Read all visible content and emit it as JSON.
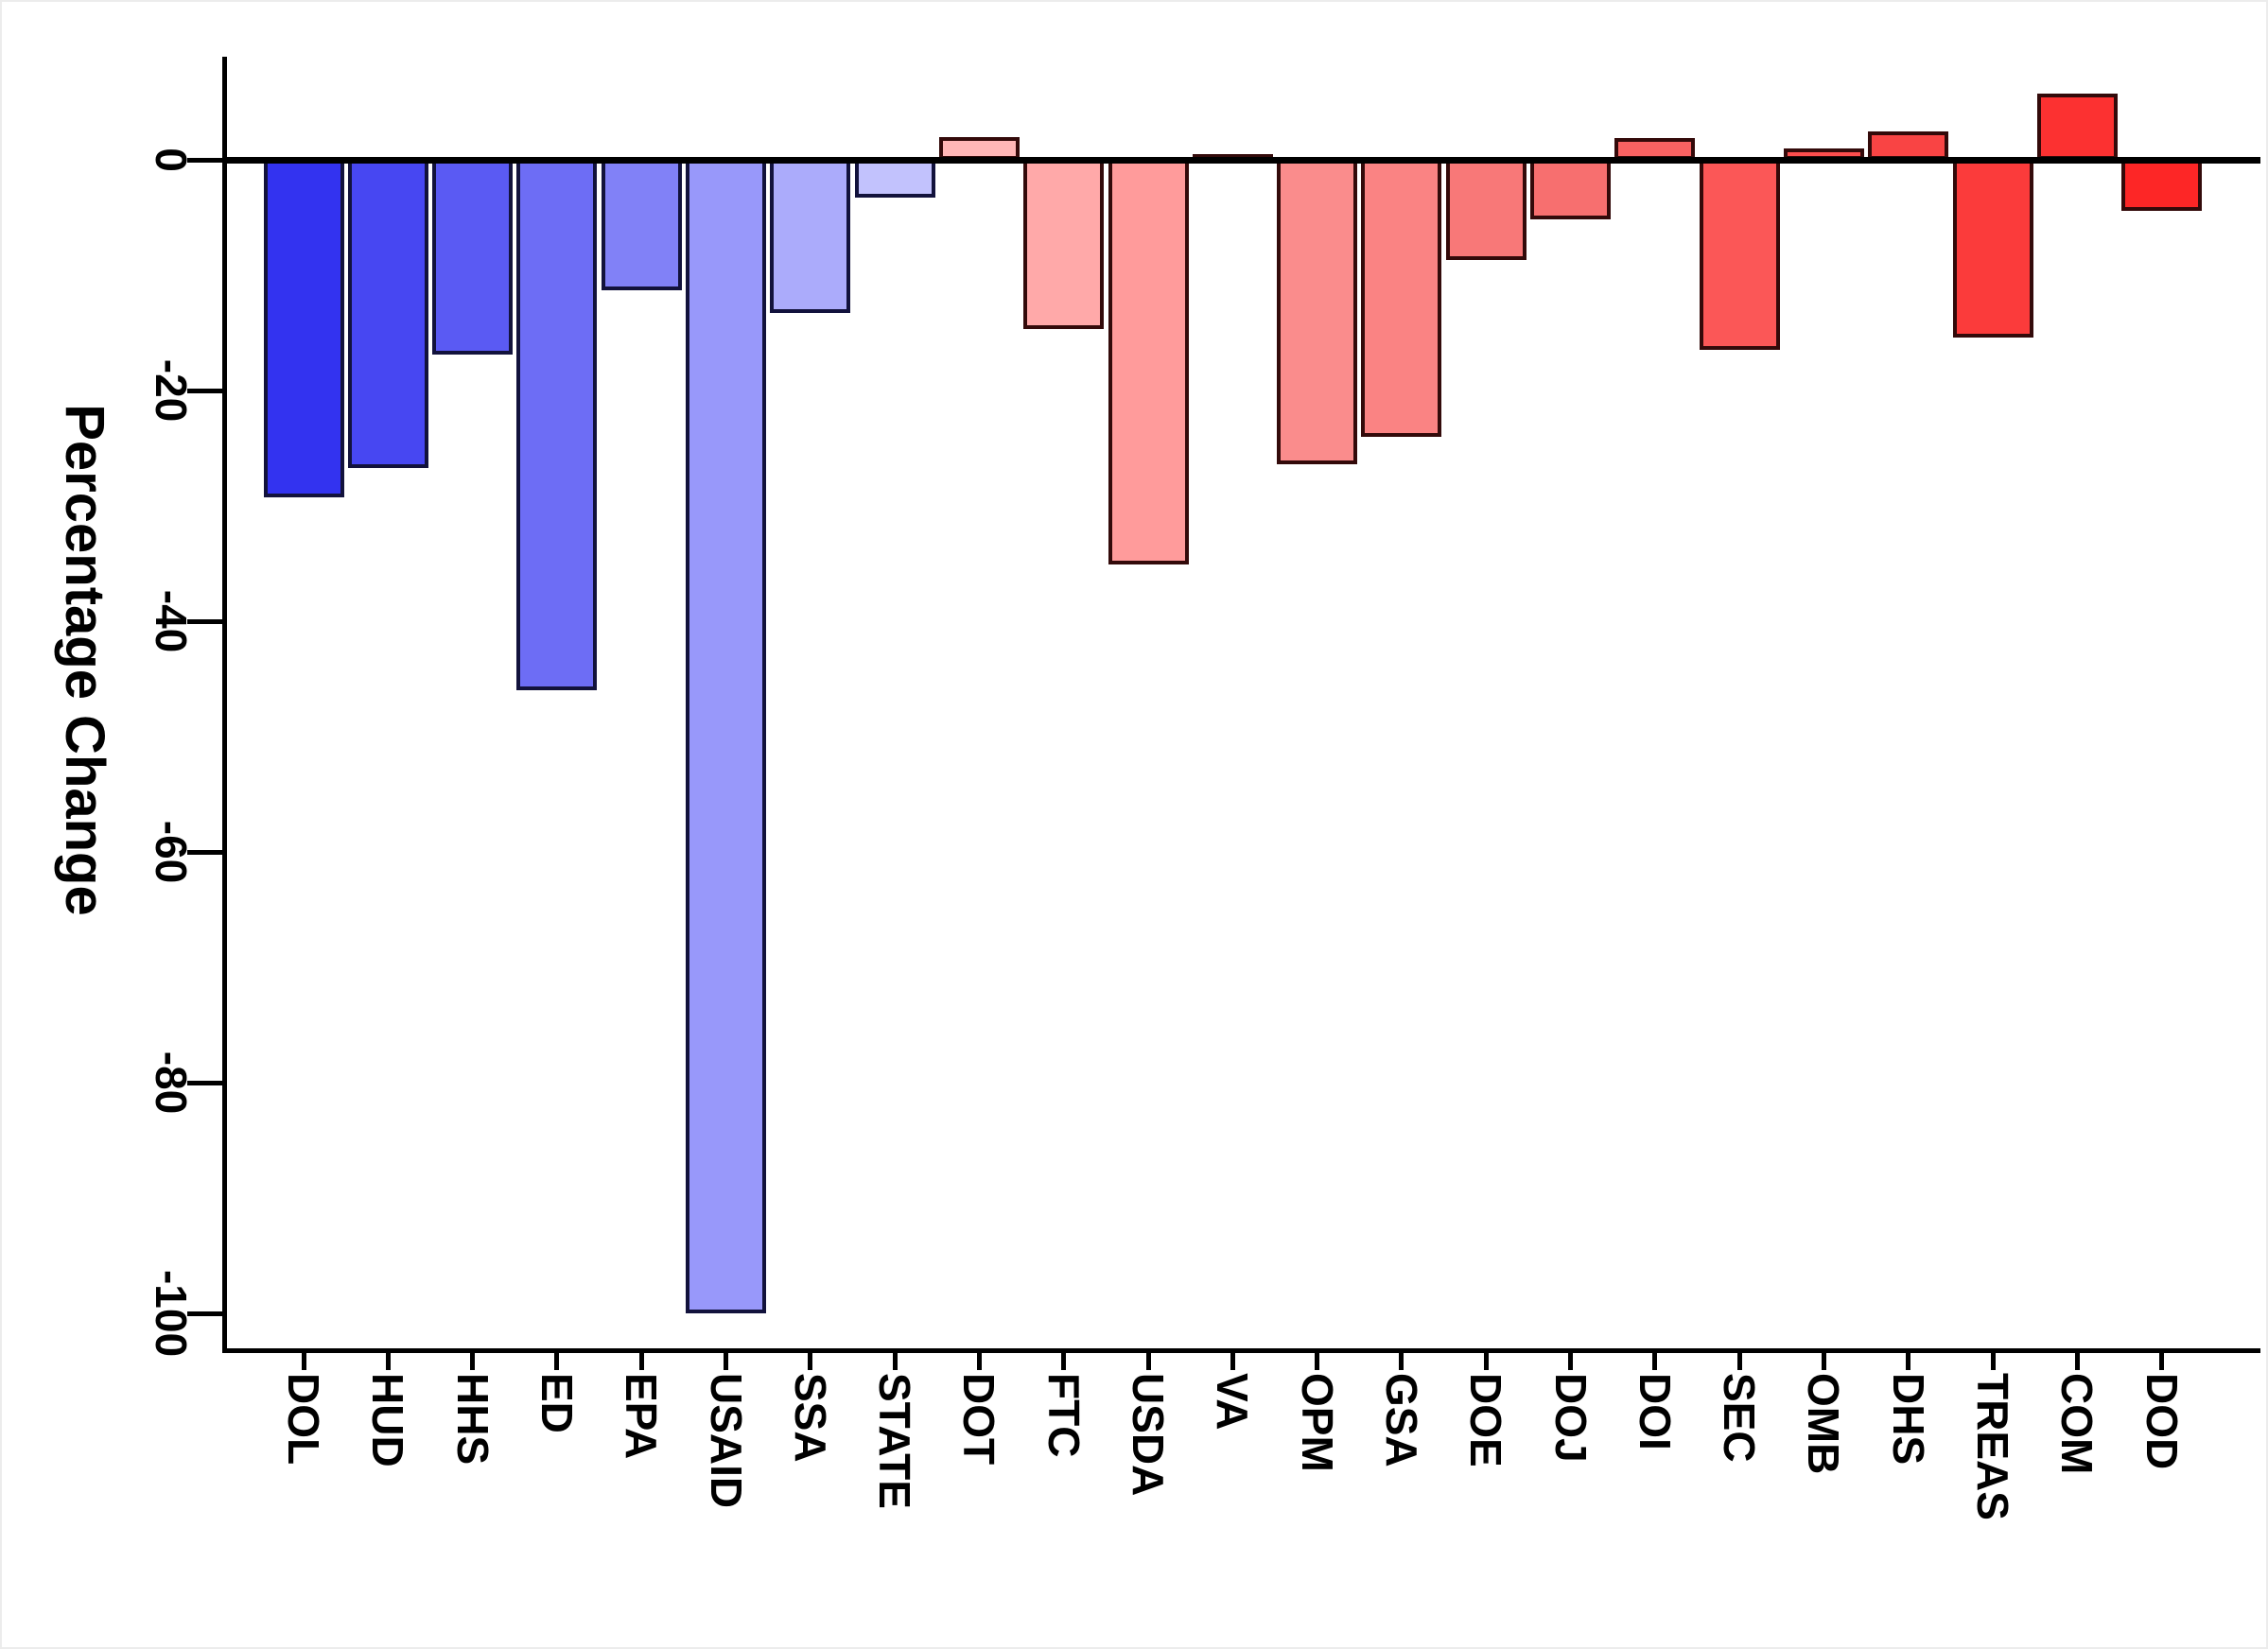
{
  "figure": {
    "background_color": "#ffffff",
    "axis_color": "#000000"
  },
  "chart_data": {
    "type": "bar",
    "title": "",
    "xlabel": "",
    "ylabel": "Percentage Change",
    "categories": [
      "DOL",
      "HUD",
      "HHS",
      "ED",
      "EPA",
      "USAID",
      "SSA",
      "STATE",
      "DOT",
      "FTC",
      "USDA",
      "VA",
      "OPM",
      "GSA",
      "DOE",
      "DOJ",
      "DOI",
      "SEC",
      "OMB",
      "DHS",
      "TREAS",
      "COM",
      "DOD"
    ],
    "values": [
      -29.3,
      -26.7,
      -16.9,
      -46.0,
      -11.3,
      -100.0,
      -13.3,
      -3.3,
      2.0,
      -14.7,
      -35.1,
      0.5,
      -26.4,
      -24.0,
      -8.7,
      -5.2,
      1.9,
      -16.5,
      1.0,
      2.5,
      -15.4,
      5.7,
      -4.4
    ],
    "bar_colors": [
      "#3333f0",
      "#4747f2",
      "#5a5af3",
      "#6d6df5",
      "#8181f7",
      "#9898fa",
      "#ababfb",
      "#c2c2fd",
      "#ffb6b6",
      "#ffa9a9",
      "#ff9b9b",
      "#fc9090",
      "#fa8c8c",
      "#fa8383",
      "#f87878",
      "#f76f6f",
      "#f96262",
      "#fb5757",
      "#fc4d4d",
      "#f94444",
      "#fb3b3b",
      "#fc3131",
      "#fd2626"
    ],
    "bar_border_blue": "#12123c",
    "bar_border_red": "#330a0a",
    "blue_bar_count": 8,
    "yticks": [
      0,
      -20,
      -40,
      -60,
      -80,
      -100
    ],
    "ytick_labels": [
      "0",
      "-20",
      "-40",
      "-60",
      "-80",
      "-100"
    ],
    "ylim": [
      -103,
      9
    ],
    "grid": false,
    "legend": false,
    "zero_line": true,
    "bar_orientation": "vertical",
    "label_rotation_degrees": 90
  }
}
